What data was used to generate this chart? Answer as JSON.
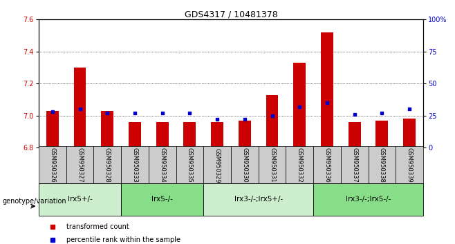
{
  "title": "GDS4317 / 10481378",
  "samples": [
    "GSM950326",
    "GSM950327",
    "GSM950328",
    "GSM950333",
    "GSM950334",
    "GSM950335",
    "GSM950329",
    "GSM950330",
    "GSM950331",
    "GSM950332",
    "GSM950336",
    "GSM950337",
    "GSM950338",
    "GSM950339"
  ],
  "red_values": [
    7.03,
    7.3,
    7.03,
    6.96,
    6.96,
    6.96,
    6.96,
    6.97,
    7.13,
    7.33,
    7.52,
    6.96,
    6.97,
    6.98
  ],
  "blue_values": [
    28,
    30,
    27,
    27,
    27,
    27,
    22,
    22,
    25,
    32,
    35,
    26,
    27,
    30
  ],
  "ylim_left": [
    6.8,
    7.6
  ],
  "ylim_right": [
    0,
    100
  ],
  "yticks_left": [
    6.8,
    7.0,
    7.2,
    7.4,
    7.6
  ],
  "yticks_right": [
    0,
    25,
    50,
    75,
    100
  ],
  "ytick_labels_right": [
    "0",
    "25",
    "50",
    "75",
    "100%"
  ],
  "bar_color": "#cc0000",
  "dot_color": "#0000cc",
  "groups": [
    {
      "label": "lrx5+/-",
      "start": 0,
      "end": 3,
      "color": "#cceecc"
    },
    {
      "label": "lrx5-/-",
      "start": 3,
      "end": 6,
      "color": "#88dd88"
    },
    {
      "label": "lrx3-/-;lrx5+/-",
      "start": 6,
      "end": 10,
      "color": "#cceecc"
    },
    {
      "label": "lrx3-/-;lrx5-/-",
      "start": 10,
      "end": 14,
      "color": "#88dd88"
    }
  ],
  "bar_width": 0.45,
  "title_fontsize": 9,
  "tick_fontsize": 7,
  "sample_fontsize": 6,
  "group_fontsize": 7.5,
  "legend_fontsize": 7,
  "genotype_label": "genotype/variation"
}
